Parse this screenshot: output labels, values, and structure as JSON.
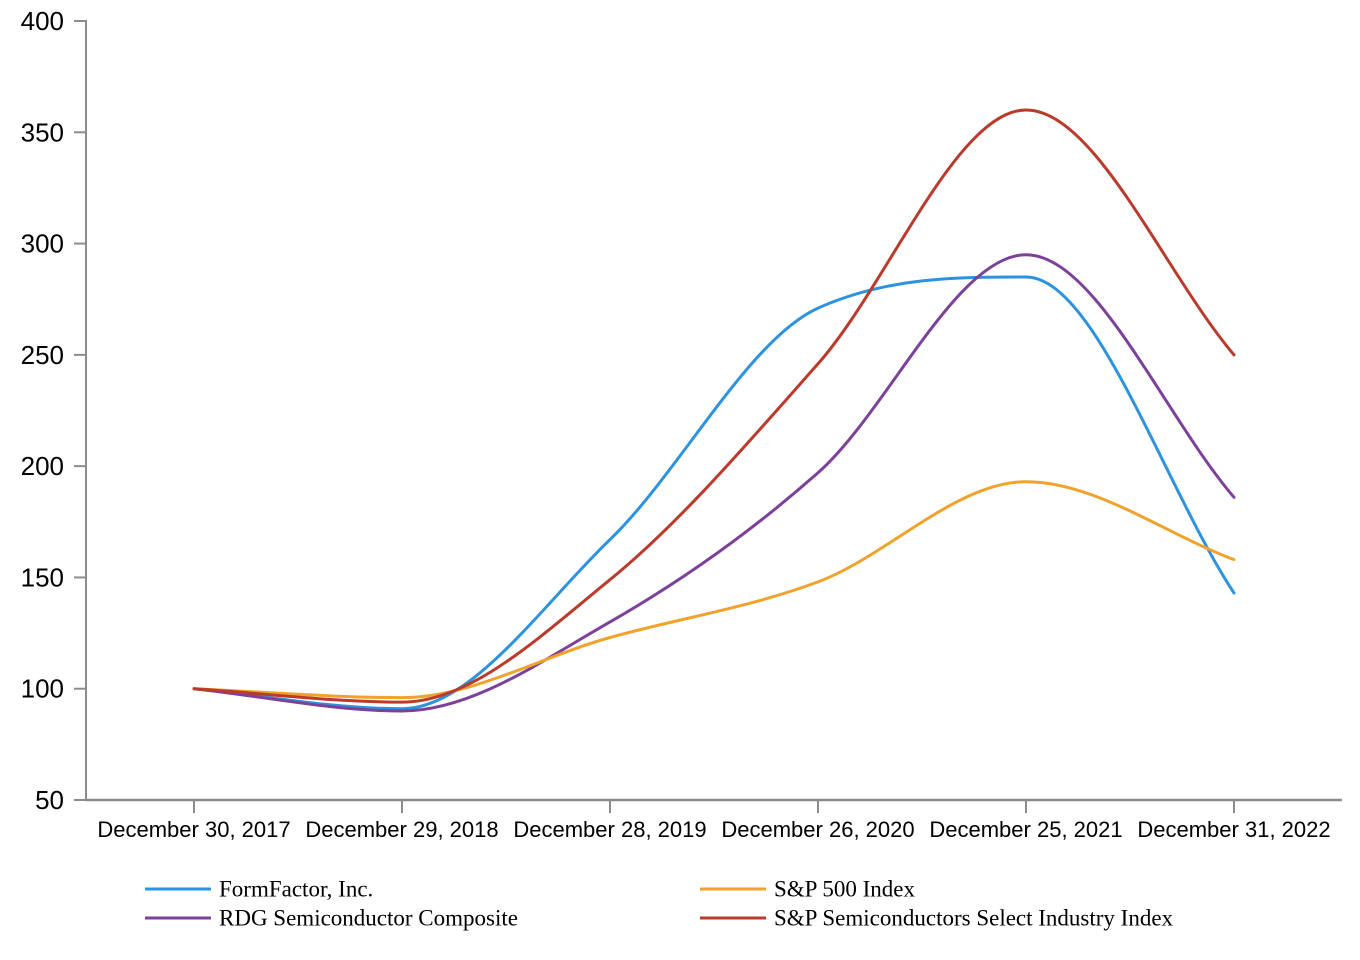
{
  "chart_data": {
    "type": "line",
    "title": "",
    "xlabel": "",
    "ylabel": "",
    "categories": [
      "December 30, 2017",
      "December 29, 2018",
      "December 28, 2019",
      "December 26, 2020",
      "December 25, 2021",
      "December 31, 2022"
    ],
    "series": [
      {
        "name": "FormFactor, Inc.",
        "color": "#2E93DE",
        "values": [
          100,
          91,
          167,
          271,
          285,
          143
        ]
      },
      {
        "name": "RDG Semiconductor Composite",
        "color": "#7C4199",
        "values": [
          100,
          90,
          130,
          197,
          295,
          186
        ]
      },
      {
        "name": "S&P 500 Index",
        "color": "#F0A32C",
        "values": [
          100,
          96,
          123,
          148,
          193,
          158
        ]
      },
      {
        "name": "S&P Semiconductors Select Industry Index",
        "color": "#BA3B2B",
        "values": [
          100,
          94,
          149,
          246,
          360,
          250
        ]
      }
    ],
    "yaxis": {
      "min": 50,
      "max": 400,
      "step": 50,
      "tick_labels": [
        "50",
        "100",
        "150",
        "200",
        "250",
        "300",
        "350",
        "400"
      ]
    },
    "grid": false,
    "line_smoothing": "spline",
    "axis_color": "#8C8C8C",
    "text_color": "#000000",
    "legend_position": "bottom",
    "legend": {
      "columns": [
        [
          "FormFactor, Inc.",
          "RDG Semiconductor Composite"
        ],
        [
          "S&P 500 Index",
          "S&P Semiconductors Select Industry Index"
        ]
      ]
    }
  }
}
